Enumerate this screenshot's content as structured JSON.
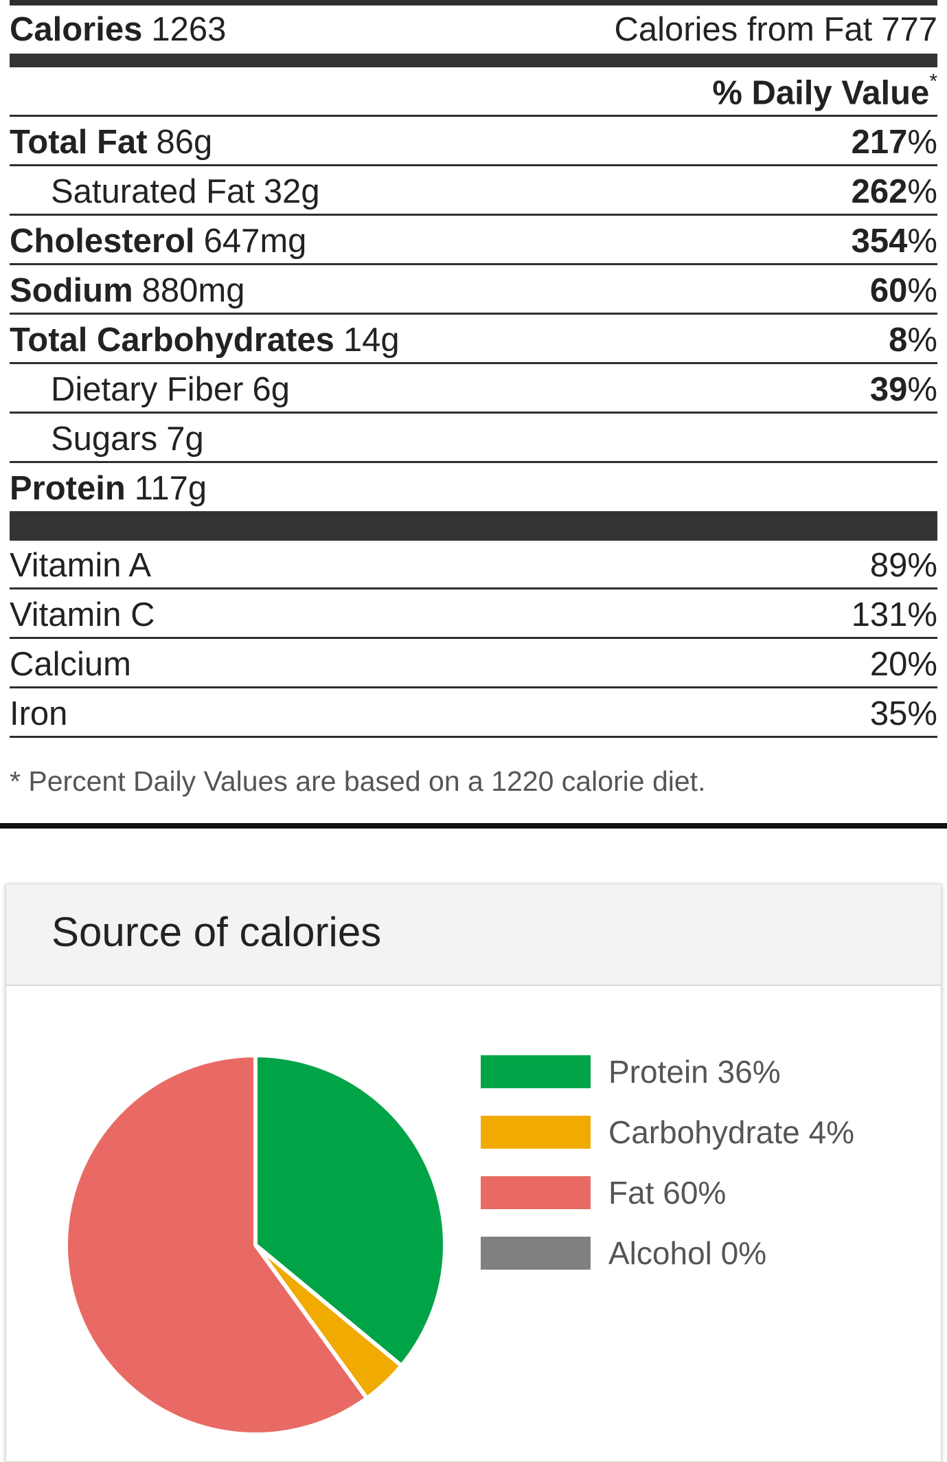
{
  "nutrition": {
    "calories_label": "Calories",
    "calories_value": "1263",
    "calories_from_fat_label": "Calories from Fat",
    "calories_from_fat_value": "777",
    "daily_value_header": "% Daily Value",
    "daily_value_marker": "*",
    "nutrients": [
      {
        "name": "Total Fat",
        "amount": "86g",
        "dv": "217",
        "pct": "%"
      },
      {
        "name": "Saturated Fat",
        "amount": "32g",
        "dv": "262",
        "pct": "%"
      },
      {
        "name": "Cholesterol",
        "amount": "647mg",
        "dv": "354",
        "pct": "%"
      },
      {
        "name": "Sodium",
        "amount": "880mg",
        "dv": "60",
        "pct": "%"
      },
      {
        "name": "Total Carbohydrates",
        "amount": "14g",
        "dv": "8",
        "pct": "%"
      },
      {
        "name": "Dietary Fiber",
        "amount": "6g",
        "dv": "39",
        "pct": "%"
      },
      {
        "name": "Sugars",
        "amount": "7g"
      },
      {
        "name": "Protein",
        "amount": "117g"
      }
    ],
    "vitamins": [
      {
        "name": "Vitamin A",
        "value": "89%"
      },
      {
        "name": "Vitamin C",
        "value": "131%"
      },
      {
        "name": "Calcium",
        "value": "20%"
      },
      {
        "name": "Iron",
        "value": "35%"
      }
    ],
    "footnote": "* Percent Daily Values are based on a 1220 calorie diet."
  },
  "calories_card": {
    "title": "Source of calories"
  },
  "chart_data": {
    "type": "pie",
    "title": "Source of calories",
    "categories": [
      "Protein",
      "Carbohydrate",
      "Fat",
      "Alcohol"
    ],
    "values": [
      36,
      4,
      60,
      0
    ],
    "legend_labels": [
      "Protein 36%",
      "Carbohydrate 4%",
      "Fat 60%",
      "Alcohol 0%"
    ],
    "colors": [
      "#00a346",
      "#f0aa00",
      "#e96a64",
      "#808080"
    ],
    "legend_position": "right"
  }
}
